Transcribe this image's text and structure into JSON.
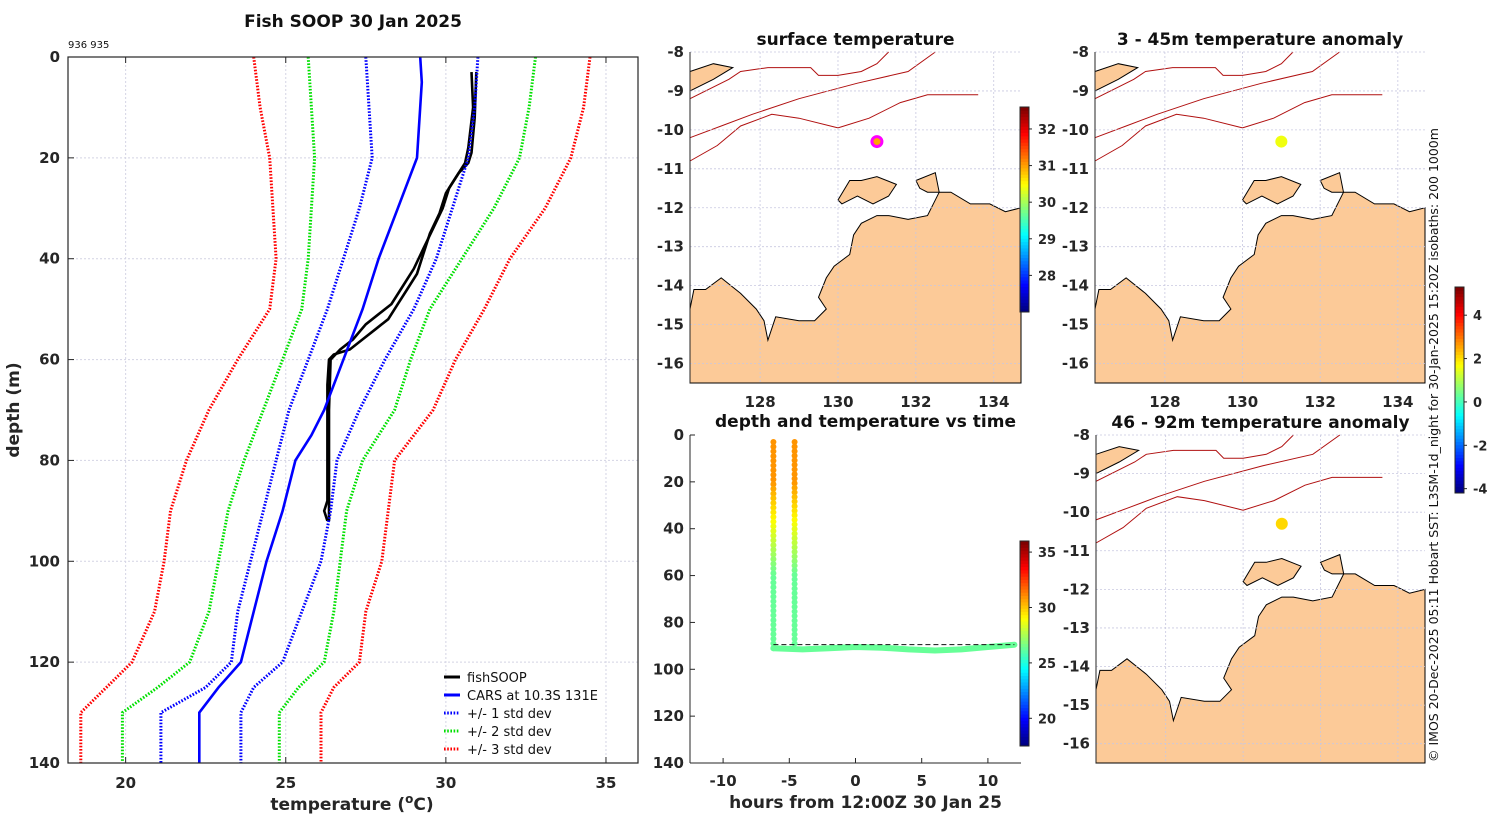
{
  "figure": {
    "credit": "© IMOS 20-Dec-2025 05:11 Hobart SST: L3SM-1d_night for 30-Jan-2025 15:20Z isobaths: 200  1000m"
  },
  "chart_data": [
    {
      "id": "profile",
      "type": "line",
      "title": "Fish SOOP 30 Jan 2025",
      "annotation": "936 935",
      "xlabel": "temperature (°C)",
      "xlabel_main": "temperature (",
      "xlabel_sup": "o",
      "xlabel_end": "C)",
      "ylabel": "depth (m)",
      "xlim": [
        18.2,
        36.0
      ],
      "ylim": [
        140,
        0
      ],
      "y_reversed": true,
      "grid": true,
      "xticks": [
        20,
        25,
        30,
        35
      ],
      "yticks": [
        0,
        20,
        40,
        60,
        80,
        100,
        120,
        140
      ],
      "legend_position": "bottom-right",
      "series": [
        {
          "name": "fishSOOP",
          "color": "#000000",
          "style": "solid",
          "points": [
            [
              30.8,
              3
            ],
            [
              30.85,
              10
            ],
            [
              30.7,
              18
            ],
            [
              30.6,
              21
            ],
            [
              30.3,
              24
            ],
            [
              30.0,
              27
            ],
            [
              29.8,
              31
            ],
            [
              29.5,
              35
            ],
            [
              29.3,
              39
            ],
            [
              29.1,
              43
            ],
            [
              28.8,
              46
            ],
            [
              28.5,
              49
            ],
            [
              28.2,
              52
            ],
            [
              27.8,
              54
            ],
            [
              27.4,
              56
            ],
            [
              27.0,
              58
            ],
            [
              26.5,
              59
            ],
            [
              26.35,
              60
            ],
            [
              26.3,
              65
            ],
            [
              26.3,
              70
            ],
            [
              26.3,
              80
            ],
            [
              26.3,
              88
            ],
            [
              26.2,
              90
            ],
            [
              26.3,
              92
            ]
          ]
        },
        {
          "name": "fishSOOP",
          "color": "#000000",
          "style": "solid",
          "legend": false,
          "points": [
            [
              30.95,
              3
            ],
            [
              30.9,
              12
            ],
            [
              30.8,
              19
            ],
            [
              30.7,
              21
            ],
            [
              30.4,
              23
            ],
            [
              30.1,
              26
            ],
            [
              29.9,
              30
            ],
            [
              29.6,
              34
            ],
            [
              29.3,
              38
            ],
            [
              29.0,
              42
            ],
            [
              28.6,
              46
            ],
            [
              28.3,
              49
            ],
            [
              27.9,
              51
            ],
            [
              27.5,
              53
            ],
            [
              27.1,
              56
            ],
            [
              26.7,
              58
            ],
            [
              26.4,
              60
            ],
            [
              26.35,
              70
            ],
            [
              26.35,
              80
            ],
            [
              26.35,
              90
            ],
            [
              26.35,
              92
            ]
          ]
        },
        {
          "name": "CARS at 10.3S 131E",
          "color": "#0000ff",
          "style": "solid",
          "points": [
            [
              29.2,
              0
            ],
            [
              29.25,
              5
            ],
            [
              29.2,
              10
            ],
            [
              29.1,
              20
            ],
            [
              28.5,
              30
            ],
            [
              27.9,
              40
            ],
            [
              27.4,
              50
            ],
            [
              26.8,
              60
            ],
            [
              26.2,
              70
            ],
            [
              25.8,
              75
            ],
            [
              25.3,
              80
            ],
            [
              24.9,
              90
            ],
            [
              24.4,
              100
            ],
            [
              24.0,
              110
            ],
            [
              23.6,
              120
            ],
            [
              22.9,
              125
            ],
            [
              22.3,
              130
            ],
            [
              22.3,
              140
            ]
          ]
        },
        {
          "name": "+/- 1 std dev",
          "color": "#0000ff",
          "style": "dotted",
          "points": [
            [
              27.5,
              0
            ],
            [
              27.6,
              10
            ],
            [
              27.7,
              20
            ],
            [
              27.3,
              30
            ],
            [
              26.8,
              40
            ],
            [
              26.3,
              50
            ],
            [
              25.7,
              60
            ],
            [
              25.1,
              70
            ],
            [
              24.7,
              80
            ],
            [
              24.3,
              90
            ],
            [
              23.9,
              100
            ],
            [
              23.5,
              110
            ],
            [
              23.3,
              120
            ],
            [
              22.5,
              125
            ],
            [
              21.1,
              130
            ],
            [
              21.1,
              140
            ]
          ]
        },
        {
          "name": "+/- 1 std dev",
          "color": "#0000ff",
          "style": "dotted",
          "legend": false,
          "points": [
            [
              31.0,
              0
            ],
            [
              30.9,
              10
            ],
            [
              30.7,
              20
            ],
            [
              30.2,
              30
            ],
            [
              29.7,
              40
            ],
            [
              29.0,
              50
            ],
            [
              28.1,
              60
            ],
            [
              27.3,
              70
            ],
            [
              26.6,
              80
            ],
            [
              26.4,
              90
            ],
            [
              26.1,
              100
            ],
            [
              25.5,
              110
            ],
            [
              24.9,
              120
            ],
            [
              24.0,
              125
            ],
            [
              23.6,
              130
            ],
            [
              23.6,
              140
            ]
          ]
        },
        {
          "name": "+/- 2 std dev",
          "color": "#00e000",
          "style": "dotted",
          "points": [
            [
              25.7,
              0
            ],
            [
              25.8,
              10
            ],
            [
              25.9,
              20
            ],
            [
              25.8,
              30
            ],
            [
              25.7,
              40
            ],
            [
              25.5,
              50
            ],
            [
              24.9,
              60
            ],
            [
              24.3,
              70
            ],
            [
              23.7,
              80
            ],
            [
              23.2,
              90
            ],
            [
              22.9,
              100
            ],
            [
              22.6,
              110
            ],
            [
              22.0,
              120
            ],
            [
              21.0,
              125
            ],
            [
              19.9,
              130
            ],
            [
              19.9,
              140
            ]
          ]
        },
        {
          "name": "+/- 2 std dev",
          "color": "#00e000",
          "style": "dotted",
          "legend": false,
          "points": [
            [
              32.8,
              0
            ],
            [
              32.6,
              10
            ],
            [
              32.3,
              20
            ],
            [
              31.5,
              30
            ],
            [
              30.5,
              40
            ],
            [
              29.5,
              50
            ],
            [
              28.9,
              60
            ],
            [
              28.4,
              70
            ],
            [
              27.4,
              80
            ],
            [
              26.9,
              90
            ],
            [
              26.7,
              100
            ],
            [
              26.5,
              110
            ],
            [
              26.2,
              120
            ],
            [
              25.4,
              125
            ],
            [
              24.8,
              130
            ],
            [
              24.8,
              140
            ]
          ]
        },
        {
          "name": "+/- 3 std dev",
          "color": "#ff0000",
          "style": "dotted",
          "points": [
            [
              24.0,
              0
            ],
            [
              24.2,
              10
            ],
            [
              24.5,
              20
            ],
            [
              24.6,
              30
            ],
            [
              24.7,
              40
            ],
            [
              24.5,
              50
            ],
            [
              23.5,
              60
            ],
            [
              22.6,
              70
            ],
            [
              21.9,
              80
            ],
            [
              21.4,
              90
            ],
            [
              21.2,
              100
            ],
            [
              20.9,
              110
            ],
            [
              20.2,
              120
            ],
            [
              19.4,
              125
            ],
            [
              18.6,
              130
            ],
            [
              18.6,
              140
            ]
          ]
        },
        {
          "name": "+/- 3 std dev",
          "color": "#ff0000",
          "style": "dotted",
          "legend": false,
          "points": [
            [
              34.5,
              0
            ],
            [
              34.3,
              10
            ],
            [
              33.9,
              20
            ],
            [
              33.1,
              30
            ],
            [
              32.0,
              40
            ],
            [
              31.2,
              50
            ],
            [
              30.3,
              60
            ],
            [
              29.6,
              70
            ],
            [
              28.4,
              80
            ],
            [
              28.2,
              90
            ],
            [
              28.0,
              100
            ],
            [
              27.5,
              110
            ],
            [
              27.3,
              120
            ],
            [
              26.5,
              125
            ],
            [
              26.1,
              130
            ],
            [
              26.1,
              140
            ]
          ]
        }
      ]
    },
    {
      "id": "surface-temperature",
      "type": "heatmap",
      "title": "surface temperature",
      "xlim": [
        126.2,
        134.7
      ],
      "ylim": [
        -16.5,
        -8
      ],
      "xticks": [
        128,
        130,
        132,
        134
      ],
      "yticks": [
        -8,
        -9,
        -10,
        -11,
        -12,
        -13,
        -14,
        -15,
        -16
      ],
      "colorbar": {
        "min": 27.0,
        "max": 32.6,
        "ticks": [
          28,
          29,
          30,
          31,
          32
        ]
      },
      "marker": {
        "lon": 131.0,
        "lat": -10.3,
        "value": 31.0,
        "style": "ring",
        "ring_color": "#ff00ff"
      }
    },
    {
      "id": "anomaly-3-45m",
      "type": "heatmap",
      "title": "3 - 45m temperature anomaly",
      "xlim": [
        126.2,
        134.7
      ],
      "ylim": [
        -16.5,
        -8
      ],
      "xticks": [
        128,
        130,
        132,
        134
      ],
      "yticks": [
        -8,
        -9,
        -10,
        -11,
        -12,
        -13,
        -14,
        -15,
        -16
      ],
      "marker": {
        "lon": 131.0,
        "lat": -10.3,
        "value": 1.6
      }
    },
    {
      "id": "anomaly-46-92m",
      "type": "heatmap",
      "title": "46 - 92m temperature anomaly",
      "xlim": [
        126.2,
        134.7
      ],
      "ylim": [
        -16.5,
        -8
      ],
      "xticks": [
        128,
        130,
        132,
        134
      ],
      "yticks": [
        -8,
        -9,
        -10,
        -11,
        -12,
        -13,
        -14,
        -15,
        -16
      ],
      "marker": {
        "lon": 131.0,
        "lat": -10.3,
        "value": 2.1
      },
      "colorbar": {
        "min": -4.2,
        "max": 5.3,
        "ticks": [
          -4,
          -2,
          0,
          2,
          4
        ]
      }
    },
    {
      "id": "depth-time",
      "type": "scatter",
      "title": "depth and temperature vs time",
      "xlabel": "hours from 12:00Z 30 Jan 25",
      "ylabel": "",
      "xlim": [
        -12.5,
        12.5
      ],
      "ylim": [
        140,
        0
      ],
      "xticks": [
        -10,
        -5,
        0,
        5,
        10
      ],
      "yticks": [
        0,
        20,
        40,
        60,
        80,
        100,
        120,
        140
      ],
      "colorbar": {
        "min": 17.5,
        "max": 36.0,
        "ticks": [
          20,
          25,
          30,
          35
        ]
      },
      "casts": [
        {
          "hour": -6.2,
          "depth_top": 3,
          "depth_bottom": 91,
          "temp_top": 31.0,
          "temp_bottom": 26.3
        },
        {
          "hour": -4.6,
          "depth_top": 3,
          "depth_bottom": 89,
          "temp_top": 31.0,
          "temp_bottom": 26.3
        }
      ],
      "tow": {
        "temp": 26.3,
        "points": [
          [
            -6.2,
            91
          ],
          [
            -4,
            91.5
          ],
          [
            -2,
            91
          ],
          [
            0,
            90.5
          ],
          [
            2,
            90.8
          ],
          [
            4,
            91.5
          ],
          [
            6,
            92
          ],
          [
            8,
            91.5
          ],
          [
            10,
            90.5
          ],
          [
            12,
            89.5
          ]
        ]
      },
      "reference_line": {
        "depth": 89.5,
        "from_hour": -6.2,
        "to_hour": 12,
        "style": "dashed"
      }
    }
  ]
}
